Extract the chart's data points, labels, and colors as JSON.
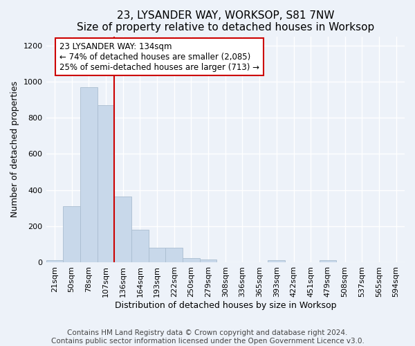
{
  "title": "23, LYSANDER WAY, WORKSOP, S81 7NW",
  "subtitle": "Size of property relative to detached houses in Worksop",
  "xlabel": "Distribution of detached houses by size in Worksop",
  "ylabel": "Number of detached properties",
  "bar_labels": [
    "21sqm",
    "50sqm",
    "78sqm",
    "107sqm",
    "136sqm",
    "164sqm",
    "193sqm",
    "222sqm",
    "250sqm",
    "279sqm",
    "308sqm",
    "336sqm",
    "365sqm",
    "393sqm",
    "422sqm",
    "451sqm",
    "479sqm",
    "508sqm",
    "537sqm",
    "565sqm",
    "594sqm"
  ],
  "bar_values": [
    13,
    310,
    970,
    870,
    365,
    180,
    80,
    80,
    22,
    15,
    0,
    0,
    0,
    13,
    0,
    0,
    13,
    0,
    0,
    0,
    0
  ],
  "bar_color": "#c8d8ea",
  "bar_edgecolor": "#aabdd0",
  "vline_x": 4,
  "vline_color": "#cc0000",
  "annotation_text": "23 LYSANDER WAY: 134sqm\n← 74% of detached houses are smaller (2,085)\n25% of semi-detached houses are larger (713) →",
  "annotation_box_color": "#ffffff",
  "annotation_box_edgecolor": "#cc0000",
  "ylim": [
    0,
    1250
  ],
  "yticks": [
    0,
    200,
    400,
    600,
    800,
    1000,
    1200
  ],
  "footnote": "Contains HM Land Registry data © Crown copyright and database right 2024.\nContains public sector information licensed under the Open Government Licence v3.0.",
  "background_color": "#edf2f9",
  "plot_background_color": "#edf2f9",
  "grid_color": "#ffffff",
  "title_fontsize": 11,
  "axis_label_fontsize": 9,
  "tick_fontsize": 8,
  "footnote_fontsize": 7.5,
  "annotation_fontsize": 8.5
}
